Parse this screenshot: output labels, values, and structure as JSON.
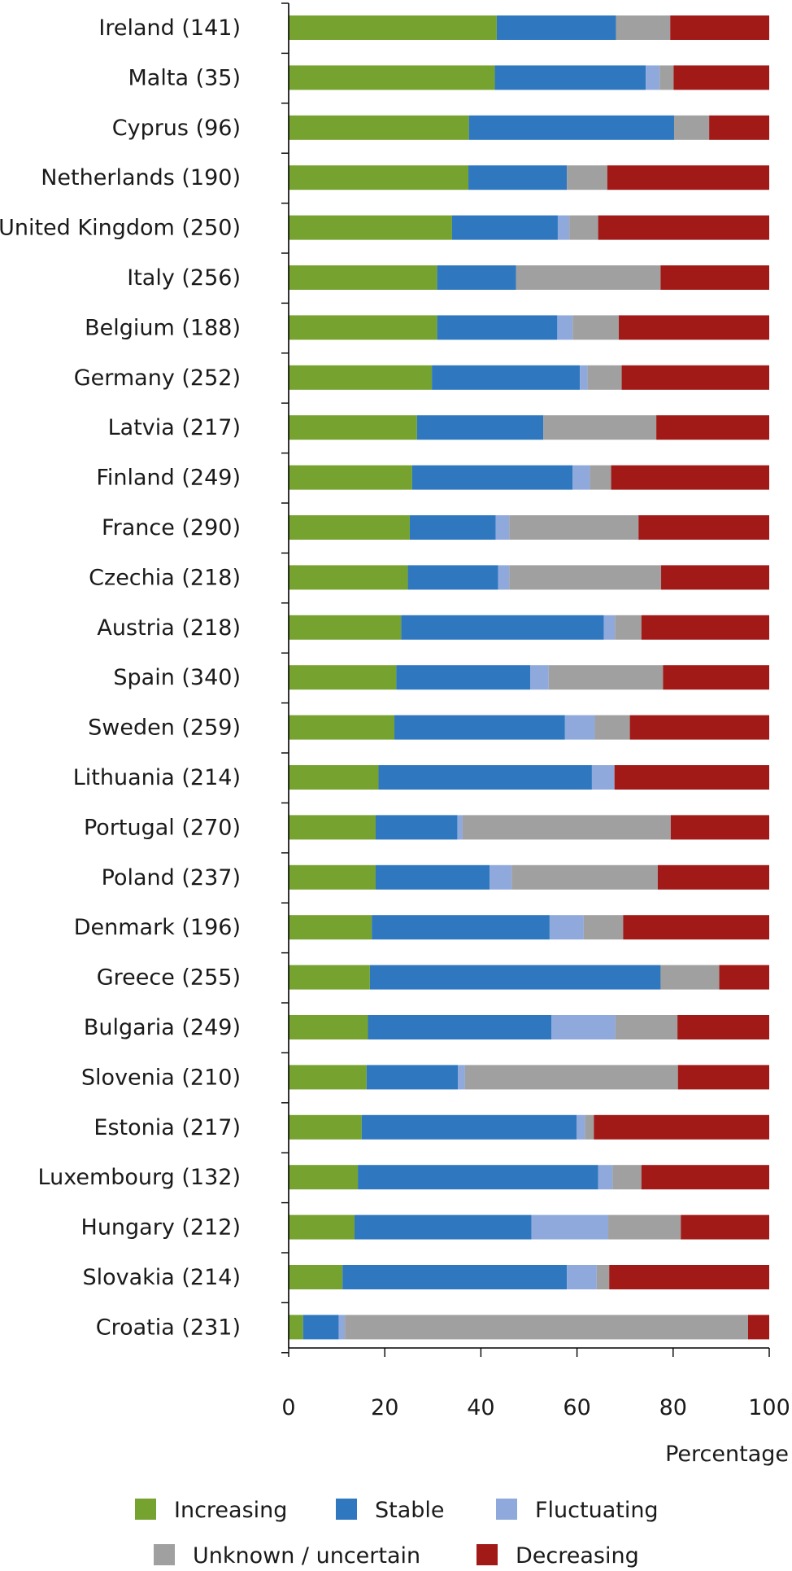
{
  "chart_data": {
    "type": "bar",
    "orientation": "horizontal",
    "stacked": true,
    "title": "",
    "xlabel": "Percentage",
    "ylabel": "",
    "xlim": [
      0,
      100
    ],
    "xticks": [
      0,
      20,
      40,
      60,
      80,
      100
    ],
    "grid": false,
    "legend_position": "bottom",
    "categories": [
      "Ireland (141)",
      "Malta (35)",
      "Cyprus (96)",
      "Netherlands (190)",
      "United Kingdom (250)",
      "Italy (256)",
      "Belgium (188)",
      "Germany (252)",
      "Latvia (217)",
      "Finland (249)",
      "France (290)",
      "Czechia (218)",
      "Austria (218)",
      "Spain (340)",
      "Sweden (259)",
      "Lithuania (214)",
      "Portugal (270)",
      "Poland (237)",
      "Denmark (196)",
      "Greece (255)",
      "Bulgaria (249)",
      "Slovenia (210)",
      "Estonia (217)",
      "Luxembourg (132)",
      "Hungary (212)",
      "Slovakia (214)",
      "Croatia (231)"
    ],
    "series": [
      {
        "name": "Increasing",
        "color": "#76a22f",
        "values": [
          43.3,
          42.9,
          37.5,
          37.4,
          34.0,
          30.9,
          30.9,
          29.8,
          26.7,
          25.7,
          25.2,
          24.8,
          23.4,
          22.4,
          22.0,
          18.7,
          18.1,
          18.1,
          17.3,
          16.9,
          16.5,
          16.2,
          15.2,
          14.4,
          13.7,
          11.2,
          3.0
        ]
      },
      {
        "name": "Stable",
        "color": "#2f78bf",
        "values": [
          24.8,
          31.4,
          42.7,
          20.5,
          22.0,
          16.4,
          25.0,
          30.8,
          26.3,
          33.4,
          17.9,
          18.8,
          42.2,
          27.9,
          35.5,
          44.4,
          17.0,
          23.7,
          37.0,
          60.5,
          38.2,
          19.0,
          44.7,
          50.0,
          36.8,
          46.7,
          7.4
        ]
      },
      {
        "name": "Fluctuating",
        "color": "#8fa9dc",
        "values": [
          0,
          2.9,
          0,
          0,
          2.4,
          0,
          3.2,
          1.6,
          0,
          3.6,
          2.8,
          2.3,
          2.3,
          3.8,
          6.2,
          4.7,
          1.1,
          4.6,
          7.1,
          0,
          13.3,
          1.5,
          1.8,
          3.0,
          16.0,
          6.2,
          1.3
        ]
      },
      {
        "name": "Unknown / uncertain",
        "color": "#a0a0a0",
        "values": [
          11.3,
          2.9,
          7.3,
          8.4,
          6.0,
          30.1,
          9.6,
          7.1,
          23.5,
          4.4,
          26.9,
          31.6,
          5.5,
          23.8,
          7.3,
          0,
          43.3,
          30.4,
          8.2,
          12.2,
          12.9,
          44.3,
          1.8,
          6.0,
          15.1,
          2.6,
          83.9
        ]
      },
      {
        "name": "Decreasing",
        "color": "#a11a17",
        "values": [
          20.6,
          19.9,
          12.5,
          33.7,
          35.6,
          22.6,
          31.3,
          30.7,
          23.5,
          32.9,
          27.2,
          22.5,
          26.6,
          22.1,
          29.0,
          32.2,
          20.5,
          23.2,
          30.4,
          10.4,
          19.1,
          19.0,
          36.5,
          26.6,
          18.4,
          33.3,
          4.4
        ]
      }
    ]
  }
}
